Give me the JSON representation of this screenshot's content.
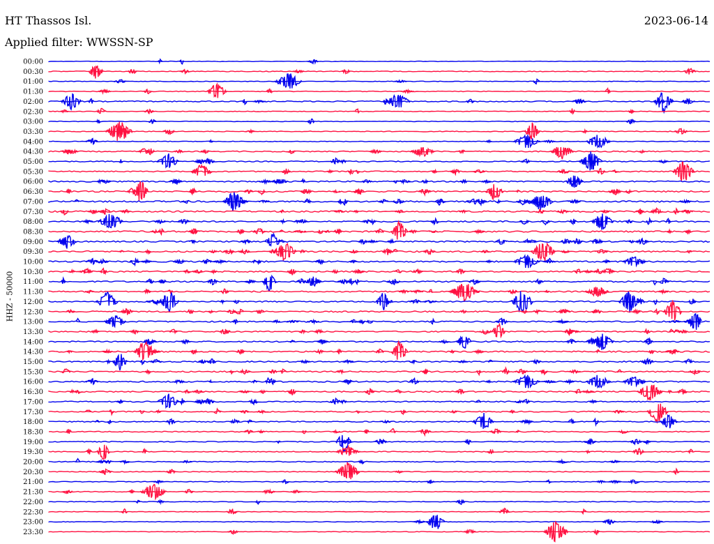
{
  "header": {
    "station": "HT Thassos Isl.",
    "date": "2023-06-14",
    "filter_label": "Applied filter:",
    "filter_value": "WWSSN-SP",
    "channel": "HHZ - 50000"
  },
  "colors": {
    "trace_a": "#0000ee",
    "trace_b": "#ff1040",
    "background": "#ffffff",
    "text": "#000000"
  },
  "chart_data": {
    "type": "line",
    "title": "",
    "ylabel": "HHZ - 50000",
    "xlabel": "",
    "grid": false,
    "legend": "none",
    "row_colors": [
      "#0000ee",
      "#ff1040"
    ],
    "row_labels": [
      "00:00",
      "00:30",
      "01:00",
      "01:30",
      "02:00",
      "02:30",
      "03:00",
      "03:30",
      "04:00",
      "04:30",
      "05:00",
      "05:30",
      "06:00",
      "06:30",
      "07:00",
      "07:30",
      "08:00",
      "08:30",
      "09:00",
      "09:30",
      "10:00",
      "10:30",
      "11:00",
      "11:30",
      "12:00",
      "12:30",
      "13:00",
      "13:30",
      "14:00",
      "14:30",
      "15:00",
      "15:30",
      "16:00",
      "16:30",
      "17:00",
      "17:30",
      "18:00",
      "18:30",
      "19:00",
      "19:30",
      "20:00",
      "20:30",
      "21:00",
      "21:30",
      "22:00",
      "22:30",
      "23:00",
      "23:30"
    ],
    "activity": [
      0.4,
      1.0,
      0.6,
      0.8,
      1.8,
      0.9,
      0.5,
      1.0,
      0.9,
      1.7,
      1.6,
      1.8,
      2.2,
      2.5,
      2.8,
      2.7,
      2.6,
      2.7,
      2.6,
      2.7,
      2.4,
      2.4,
      2.4,
      2.3,
      2.2,
      2.4,
      2.3,
      2.1,
      2.1,
      2.3,
      2.2,
      2.3,
      2.2,
      2.1,
      1.9,
      1.8,
      1.6,
      1.5,
      1.2,
      1.1,
      1.2,
      0.9,
      1.0,
      0.8,
      0.6,
      0.6,
      0.6,
      0.5
    ]
  }
}
